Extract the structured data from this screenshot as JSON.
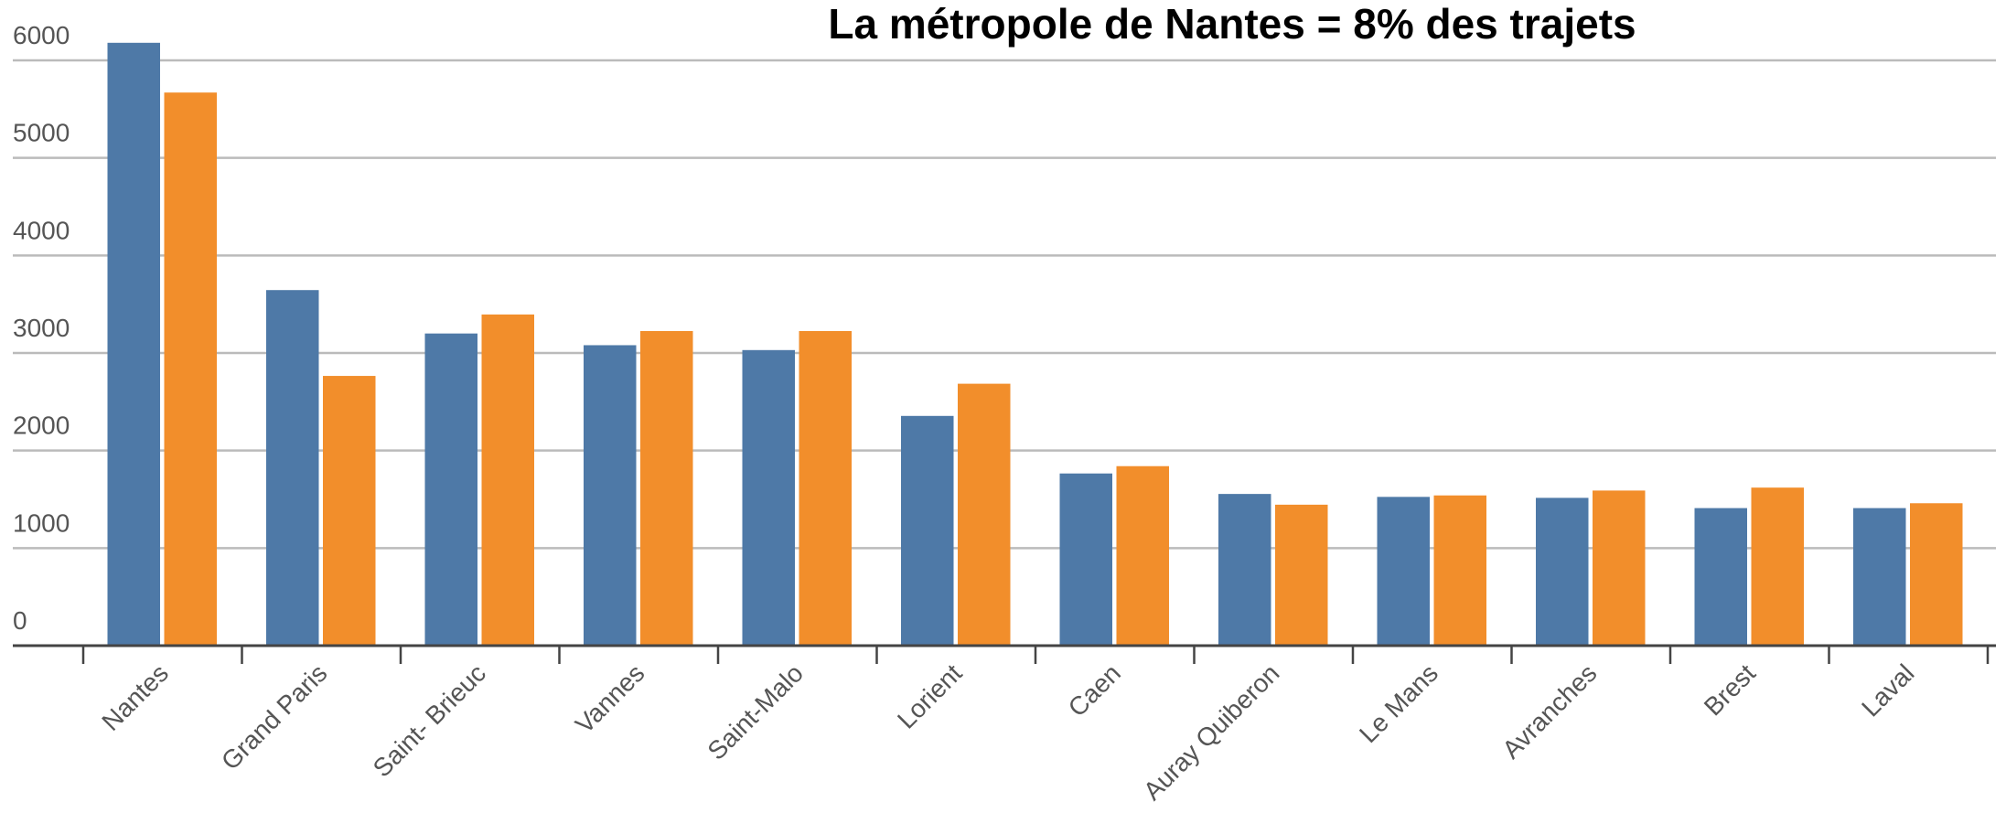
{
  "chart_data": {
    "type": "bar",
    "title": "La métropole de Nantes = 8% des trajets",
    "categories": [
      "Nantes",
      "Grand Paris",
      "Saint- Brieuc",
      "Vannes",
      "Saint-Malo",
      "Lorient",
      "Caen",
      "Auray Quiberon",
      "Le Mans",
      "Avranches",
      "Brest",
      "Laval"
    ],
    "series": [
      {
        "color": "#4e79a7",
        "values": [
          6180,
          3645,
          3200,
          3080,
          3030,
          2355,
          1765,
          1555,
          1525,
          1515,
          1410,
          1410
        ]
      },
      {
        "color": "#f28e2b",
        "values": [
          5670,
          2765,
          3395,
          3225,
          3225,
          2685,
          1840,
          1445,
          1540,
          1590,
          1620,
          1460
        ]
      }
    ],
    "ylim": [
      0,
      6000
    ],
    "yticks": [
      0,
      1000,
      2000,
      3000,
      4000,
      5000,
      6000
    ],
    "grid": true
  }
}
